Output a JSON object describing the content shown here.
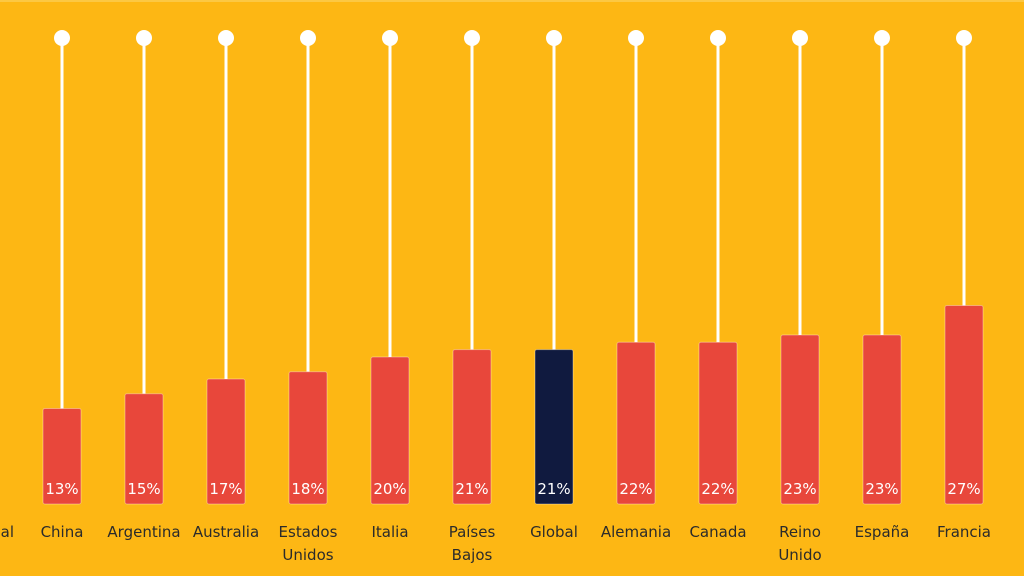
{
  "chart_data": {
    "type": "bar",
    "title": "",
    "xlabel": "",
    "ylabel": "",
    "ylim": [
      0,
      45
    ],
    "grid": false,
    "legend": "none",
    "categories": [
      {
        "label": "al",
        "lines": [
          "al"
        ],
        "value": null,
        "value_label": "",
        "highlight": false,
        "partial": true
      },
      {
        "label": "China",
        "lines": [
          "China"
        ],
        "value": 13,
        "value_label": "13%",
        "highlight": false
      },
      {
        "label": "Argentina",
        "lines": [
          "Argentina"
        ],
        "value": 15,
        "value_label": "15%",
        "highlight": false
      },
      {
        "label": "Australia",
        "lines": [
          "Australia"
        ],
        "value": 17,
        "value_label": "17%",
        "highlight": false
      },
      {
        "label": "Estados Unidos",
        "lines": [
          "Estados",
          "Unidos"
        ],
        "value": 18,
        "value_label": "18%",
        "highlight": false
      },
      {
        "label": "Italia",
        "lines": [
          "Italia"
        ],
        "value": 20,
        "value_label": "20%",
        "highlight": false
      },
      {
        "label": "Países Bajos",
        "lines": [
          "Países",
          "Bajos"
        ],
        "value": 21,
        "value_label": "21%",
        "highlight": false
      },
      {
        "label": "Global",
        "lines": [
          "Global"
        ],
        "value": 21,
        "value_label": "21%",
        "highlight": true
      },
      {
        "label": "Alemania",
        "lines": [
          "Alemania"
        ],
        "value": 22,
        "value_label": "22%",
        "highlight": false
      },
      {
        "label": "Canada",
        "lines": [
          "Canada"
        ],
        "value": 22,
        "value_label": "22%",
        "highlight": false
      },
      {
        "label": "Reino Unido",
        "lines": [
          "Reino",
          "Unido"
        ],
        "value": 23,
        "value_label": "23%",
        "highlight": false
      },
      {
        "label": "España",
        "lines": [
          "España"
        ],
        "value": 23,
        "value_label": "23%",
        "highlight": false
      },
      {
        "label": "Francia",
        "lines": [
          "Francia"
        ],
        "value": 27,
        "value_label": "27%",
        "highlight": false
      }
    ],
    "colors": {
      "background": "#fdb714",
      "bar": "#e8473b",
      "bar_highlight": "#101a3f",
      "stem": "#ffffff",
      "value_text": "#ffffff",
      "label_text": "#2b2b2b"
    }
  }
}
